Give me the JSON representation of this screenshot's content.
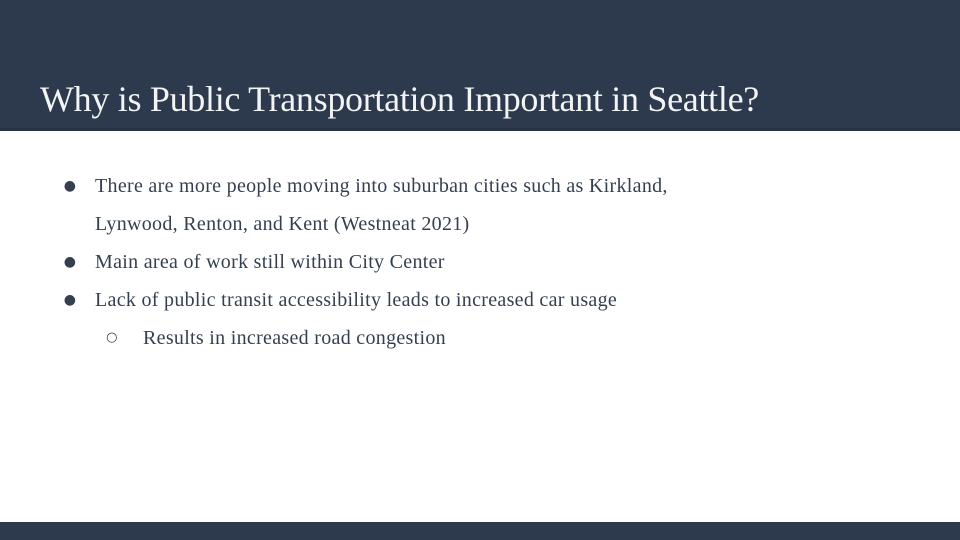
{
  "slide": {
    "title": "Why is Public Transportation Important in Seattle?",
    "bullets": [
      {
        "level": 1,
        "text": "There are more people moving into suburban cities such as Kirkland,\nLynwood, Renton, and Kent (Westneat 2021)"
      },
      {
        "level": 1,
        "text": "Main area of work still within City Center"
      },
      {
        "level": 1,
        "text": "Lack of public transit accessibility leads to increased car usage"
      },
      {
        "level": 2,
        "text": "Results in increased road congestion"
      }
    ]
  },
  "glyphs": {
    "disc_bullet": "●",
    "circle_bullet": "○"
  },
  "colors": {
    "band": "#2d3a4d",
    "band_edge": "#273246",
    "title_text": "#f2f4f5",
    "body_text": "#343f4f",
    "background": "#ffffff"
  }
}
